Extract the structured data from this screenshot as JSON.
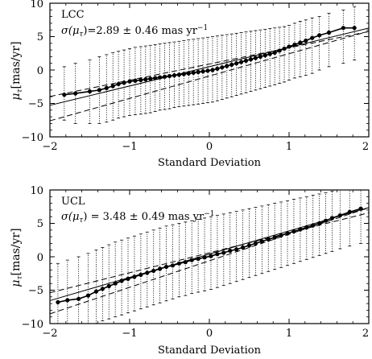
{
  "figure": {
    "x_tick_labels": [
      "−2",
      "−1",
      "0",
      "1",
      "2"
    ]
  },
  "chart_data": [
    {
      "type": "scatter",
      "panel_label": "LCC",
      "annotation_prefix": "σ(μ",
      "annotation_sub": "τ",
      "annotation_value": ")=2.89 ± 0.46  mas yr",
      "annotation_exp": "−1",
      "xlabel": "Standard Deviation",
      "ylabel_main": "μ",
      "ylabel_sub": "τ",
      "ylabel_unit": "[mas/yr]",
      "xlim": [
        -2,
        2
      ],
      "ylim": [
        -10,
        10
      ],
      "y_ticks": [
        -10,
        -5,
        0,
        5,
        10
      ],
      "y_tick_labels": [
        "−10",
        "−5",
        "0",
        "5",
        "10"
      ],
      "x_ticks": [
        -2,
        -1,
        0,
        1,
        2
      ],
      "fit_line": {
        "slope": 2.89,
        "intercept": 0.5,
        "style": "solid"
      },
      "fit_bounds": [
        {
          "slope": 3.35,
          "intercept": -0.9,
          "style": "dashed"
        },
        {
          "slope": 2.43,
          "intercept": 0.9,
          "style": "dashed"
        }
      ],
      "points": [
        {
          "x": -1.82,
          "y": -3.7,
          "lo": -7.5,
          "hi": 0.5
        },
        {
          "x": -1.68,
          "y": -3.5,
          "lo": -8.0,
          "hi": 1.0
        },
        {
          "x": -1.5,
          "y": -3.2,
          "lo": -8.0,
          "hi": 1.5
        },
        {
          "x": -1.38,
          "y": -3.0,
          "lo": -8.0,
          "hi": 2.0
        },
        {
          "x": -1.29,
          "y": -2.7,
          "lo": -7.8,
          "hi": 2.3
        },
        {
          "x": -1.21,
          "y": -2.4,
          "lo": -7.5,
          "hi": 2.6
        },
        {
          "x": -1.14,
          "y": -2.1,
          "lo": -7.2,
          "hi": 2.8
        },
        {
          "x": -1.07,
          "y": -1.9,
          "lo": -7.0,
          "hi": 3.0
        },
        {
          "x": -1.0,
          "y": -1.7,
          "lo": -6.8,
          "hi": 3.2
        },
        {
          "x": -0.93,
          "y": -1.6,
          "lo": -6.7,
          "hi": 3.4
        },
        {
          "x": -0.86,
          "y": -1.5,
          "lo": -6.6,
          "hi": 3.5
        },
        {
          "x": -0.8,
          "y": -1.4,
          "lo": -6.5,
          "hi": 3.6
        },
        {
          "x": -0.74,
          "y": -1.3,
          "lo": -6.4,
          "hi": 3.7
        },
        {
          "x": -0.68,
          "y": -1.2,
          "lo": -6.2,
          "hi": 3.8
        },
        {
          "x": -0.62,
          "y": -1.1,
          "lo": -6.0,
          "hi": 3.9
        },
        {
          "x": -0.56,
          "y": -1.0,
          "lo": -5.9,
          "hi": 4.0
        },
        {
          "x": -0.5,
          "y": -0.9,
          "lo": -5.8,
          "hi": 4.1
        },
        {
          "x": -0.44,
          "y": -0.8,
          "lo": -5.6,
          "hi": 4.2
        },
        {
          "x": -0.38,
          "y": -0.7,
          "lo": -5.5,
          "hi": 4.3
        },
        {
          "x": -0.32,
          "y": -0.6,
          "lo": -5.4,
          "hi": 4.4
        },
        {
          "x": -0.26,
          "y": -0.5,
          "lo": -5.3,
          "hi": 4.5
        },
        {
          "x": -0.2,
          "y": -0.4,
          "lo": -5.2,
          "hi": 4.6
        },
        {
          "x": -0.14,
          "y": -0.3,
          "lo": -5.1,
          "hi": 4.7
        },
        {
          "x": -0.08,
          "y": -0.2,
          "lo": -5.0,
          "hi": 4.8
        },
        {
          "x": -0.02,
          "y": -0.1,
          "lo": -4.9,
          "hi": 4.9
        },
        {
          "x": 0.04,
          "y": 0.0,
          "lo": -4.8,
          "hi": 5.0
        },
        {
          "x": 0.1,
          "y": 0.2,
          "lo": -4.6,
          "hi": 5.1
        },
        {
          "x": 0.16,
          "y": 0.4,
          "lo": -4.4,
          "hi": 5.2
        },
        {
          "x": 0.22,
          "y": 0.6,
          "lo": -4.2,
          "hi": 5.3
        },
        {
          "x": 0.28,
          "y": 0.8,
          "lo": -4.0,
          "hi": 5.4
        },
        {
          "x": 0.34,
          "y": 1.0,
          "lo": -3.8,
          "hi": 5.5
        },
        {
          "x": 0.4,
          "y": 1.2,
          "lo": -3.6,
          "hi": 5.6
        },
        {
          "x": 0.46,
          "y": 1.4,
          "lo": -3.4,
          "hi": 5.7
        },
        {
          "x": 0.52,
          "y": 1.6,
          "lo": -3.2,
          "hi": 5.8
        },
        {
          "x": 0.58,
          "y": 1.8,
          "lo": -3.0,
          "hi": 5.9
        },
        {
          "x": 0.64,
          "y": 2.0,
          "lo": -2.8,
          "hi": 6.0
        },
        {
          "x": 0.7,
          "y": 2.2,
          "lo": -2.6,
          "hi": 6.1
        },
        {
          "x": 0.76,
          "y": 2.4,
          "lo": -2.4,
          "hi": 6.2
        },
        {
          "x": 0.82,
          "y": 2.6,
          "lo": -2.2,
          "hi": 6.3
        },
        {
          "x": 0.88,
          "y": 2.9,
          "lo": -2.0,
          "hi": 6.4
        },
        {
          "x": 0.94,
          "y": 3.2,
          "lo": -1.8,
          "hi": 6.5
        },
        {
          "x": 1.0,
          "y": 3.5,
          "lo": -1.5,
          "hi": 6.7
        },
        {
          "x": 1.07,
          "y": 3.8,
          "lo": -1.2,
          "hi": 7.0
        },
        {
          "x": 1.14,
          "y": 4.1,
          "lo": -1.0,
          "hi": 7.3
        },
        {
          "x": 1.21,
          "y": 4.4,
          "lo": -0.8,
          "hi": 7.5
        },
        {
          "x": 1.29,
          "y": 4.8,
          "lo": -0.5,
          "hi": 7.8
        },
        {
          "x": 1.38,
          "y": 5.2,
          "lo": 0.0,
          "hi": 8.0
        },
        {
          "x": 1.5,
          "y": 5.6,
          "lo": 0.5,
          "hi": 8.5
        },
        {
          "x": 1.68,
          "y": 6.3,
          "lo": 1.0,
          "hi": 9.0
        },
        {
          "x": 1.82,
          "y": 6.3,
          "lo": 1.5,
          "hi": 9.5
        }
      ]
    },
    {
      "type": "scatter",
      "panel_label": "UCL",
      "annotation_prefix": "σ(μ",
      "annotation_sub": "τ",
      "annotation_value": ")  =  3.48 ± 0.49  mas yr",
      "annotation_exp": "−1",
      "xlabel": "Standard Deviation",
      "ylabel_main": "μ",
      "ylabel_sub": "τ",
      "ylabel_unit": "[mas/yr]",
      "xlim": [
        -2,
        2
      ],
      "ylim": [
        -10,
        10
      ],
      "y_ticks": [
        -10,
        -5,
        0,
        5,
        10
      ],
      "y_tick_labels": [
        "−10",
        "−5",
        "0",
        "5",
        "10"
      ],
      "x_ticks": [
        -2,
        -1,
        0,
        1,
        2
      ],
      "fit_line": {
        "slope": 3.48,
        "intercept": 0.4,
        "style": "solid"
      },
      "fit_bounds": [
        {
          "slope": 3.97,
          "intercept": -0.6,
          "style": "dashed"
        },
        {
          "slope": 2.99,
          "intercept": 0.6,
          "style": "dashed"
        }
      ],
      "points": [
        {
          "x": -1.9,
          "y": -6.8,
          "lo": -10.0,
          "hi": -1.0
        },
        {
          "x": -1.78,
          "y": -6.5,
          "lo": -10.0,
          "hi": -0.5
        },
        {
          "x": -1.64,
          "y": -6.3,
          "lo": -10.0,
          "hi": 0.0
        },
        {
          "x": -1.52,
          "y": -5.8,
          "lo": -10.0,
          "hi": 0.5
        },
        {
          "x": -1.42,
          "y": -5.2,
          "lo": -10.0,
          "hi": 1.0
        },
        {
          "x": -1.34,
          "y": -4.8,
          "lo": -9.6,
          "hi": 1.4
        },
        {
          "x": -1.26,
          "y": -4.4,
          "lo": -9.3,
          "hi": 1.8
        },
        {
          "x": -1.18,
          "y": -4.0,
          "lo": -9.0,
          "hi": 2.2
        },
        {
          "x": -1.1,
          "y": -3.6,
          "lo": -8.7,
          "hi": 2.5
        },
        {
          "x": -1.02,
          "y": -3.3,
          "lo": -8.4,
          "hi": 2.8
        },
        {
          "x": -0.94,
          "y": -3.0,
          "lo": -8.1,
          "hi": 3.1
        },
        {
          "x": -0.86,
          "y": -2.7,
          "lo": -7.8,
          "hi": 3.4
        },
        {
          "x": -0.78,
          "y": -2.4,
          "lo": -7.5,
          "hi": 3.7
        },
        {
          "x": -0.7,
          "y": -2.1,
          "lo": -7.2,
          "hi": 4.0
        },
        {
          "x": -0.62,
          "y": -1.8,
          "lo": -6.9,
          "hi": 4.3
        },
        {
          "x": -0.54,
          "y": -1.5,
          "lo": -6.6,
          "hi": 4.6
        },
        {
          "x": -0.46,
          "y": -1.3,
          "lo": -6.3,
          "hi": 4.8
        },
        {
          "x": -0.38,
          "y": -1.0,
          "lo": -6.0,
          "hi": 5.0
        },
        {
          "x": -0.3,
          "y": -0.8,
          "lo": -5.8,
          "hi": 5.2
        },
        {
          "x": -0.22,
          "y": -0.5,
          "lo": -5.5,
          "hi": 5.4
        },
        {
          "x": -0.14,
          "y": -0.3,
          "lo": -5.3,
          "hi": 5.6
        },
        {
          "x": -0.06,
          "y": -0.1,
          "lo": -5.1,
          "hi": 5.8
        },
        {
          "x": 0.02,
          "y": 0.1,
          "lo": -4.9,
          "hi": 6.0
        },
        {
          "x": 0.1,
          "y": 0.4,
          "lo": -4.6,
          "hi": 6.2
        },
        {
          "x": 0.18,
          "y": 0.6,
          "lo": -4.3,
          "hi": 6.4
        },
        {
          "x": 0.26,
          "y": 0.9,
          "lo": -4.0,
          "hi": 6.6
        },
        {
          "x": 0.34,
          "y": 1.1,
          "lo": -3.7,
          "hi": 6.8
        },
        {
          "x": 0.42,
          "y": 1.4,
          "lo": -3.4,
          "hi": 7.0
        },
        {
          "x": 0.5,
          "y": 1.7,
          "lo": -3.1,
          "hi": 7.2
        },
        {
          "x": 0.58,
          "y": 2.0,
          "lo": -2.8,
          "hi": 7.4
        },
        {
          "x": 0.66,
          "y": 2.3,
          "lo": -2.5,
          "hi": 7.6
        },
        {
          "x": 0.74,
          "y": 2.6,
          "lo": -2.2,
          "hi": 7.8
        },
        {
          "x": 0.82,
          "y": 2.9,
          "lo": -1.9,
          "hi": 8.0
        },
        {
          "x": 0.9,
          "y": 3.2,
          "lo": -1.6,
          "hi": 8.2
        },
        {
          "x": 0.98,
          "y": 3.5,
          "lo": -1.3,
          "hi": 8.4
        },
        {
          "x": 1.06,
          "y": 3.8,
          "lo": -1.0,
          "hi": 8.6
        },
        {
          "x": 1.14,
          "y": 4.1,
          "lo": -0.7,
          "hi": 8.8
        },
        {
          "x": 1.22,
          "y": 4.4,
          "lo": -0.4,
          "hi": 9.0
        },
        {
          "x": 1.3,
          "y": 4.7,
          "lo": -0.1,
          "hi": 9.2
        },
        {
          "x": 1.38,
          "y": 5.0,
          "lo": 0.2,
          "hi": 9.4
        },
        {
          "x": 1.46,
          "y": 5.4,
          "lo": 0.5,
          "hi": 9.6
        },
        {
          "x": 1.54,
          "y": 5.8,
          "lo": 0.8,
          "hi": 9.8
        },
        {
          "x": 1.64,
          "y": 6.2,
          "lo": 1.2,
          "hi": 10.0
        },
        {
          "x": 1.76,
          "y": 6.7,
          "lo": 1.6,
          "hi": 10.0
        },
        {
          "x": 1.9,
          "y": 7.2,
          "lo": 2.0,
          "hi": 10.0
        }
      ]
    }
  ]
}
